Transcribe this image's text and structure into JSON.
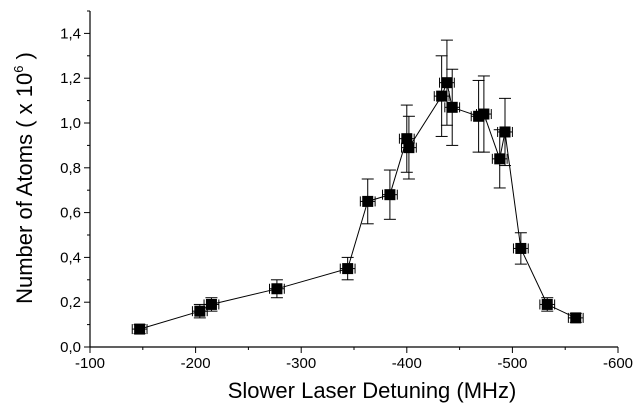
{
  "chart_data": {
    "type": "scatter",
    "title": "",
    "xlabel": "Slower Laser Detuning (MHz)",
    "ylabel": "Number of Atoms ( x 10",
    "ylabel_exponent": "6",
    "ylabel_close": " )",
    "xlim": [
      -100,
      -600
    ],
    "ylim": [
      0.0,
      1.5
    ],
    "x_ticks": [
      -100,
      -200,
      -300,
      -400,
      -500,
      -600
    ],
    "y_ticks": [
      0.0,
      0.2,
      0.4,
      0.6,
      0.8,
      1.0,
      1.2,
      1.4
    ],
    "x_tick_labels": [
      "-100",
      "-200",
      "-300",
      "-400",
      "-500",
      "-600"
    ],
    "y_tick_labels": [
      "0,0",
      "0,2",
      "0,4",
      "0,6",
      "0,8",
      "1,0",
      "1,2",
      "1,4"
    ],
    "grid": false,
    "legend": "none",
    "marker": "square",
    "connected": true,
    "colors": {
      "marker": "#000000",
      "line": "#000000",
      "axis": "#000000"
    },
    "series": [
      {
        "points": [
          {
            "x": -147,
            "y": 0.08,
            "xerr": 7,
            "yerr": 0.02
          },
          {
            "x": -204,
            "y": 0.16,
            "xerr": 7,
            "yerr": 0.03
          },
          {
            "x": -215,
            "y": 0.19,
            "xerr": 7,
            "yerr": 0.03
          },
          {
            "x": -277,
            "y": 0.26,
            "xerr": 7,
            "yerr": 0.04
          },
          {
            "x": -344,
            "y": 0.35,
            "xerr": 7,
            "yerr": 0.05
          },
          {
            "x": -363,
            "y": 0.65,
            "xerr": 7,
            "yerr": 0.1
          },
          {
            "x": -384,
            "y": 0.68,
            "xerr": 7,
            "yerr": 0.11
          },
          {
            "x": -400,
            "y": 0.93,
            "xerr": 7,
            "yerr": 0.15
          },
          {
            "x": -402,
            "y": 0.89,
            "xerr": 7,
            "yerr": 0.14
          },
          {
            "x": -433,
            "y": 1.12,
            "xerr": 7,
            "yerr": 0.18
          },
          {
            "x": -438,
            "y": 1.18,
            "xerr": 7,
            "yerr": 0.19
          },
          {
            "x": -443,
            "y": 1.07,
            "xerr": 7,
            "yerr": 0.17
          },
          {
            "x": -468,
            "y": 1.03,
            "xerr": 7,
            "yerr": 0.16
          },
          {
            "x": -473,
            "y": 1.04,
            "xerr": 7,
            "yerr": 0.17
          },
          {
            "x": -488,
            "y": 0.84,
            "xerr": 7,
            "yerr": 0.13
          },
          {
            "x": -493,
            "y": 0.96,
            "xerr": 7,
            "yerr": 0.15
          },
          {
            "x": -508,
            "y": 0.44,
            "xerr": 7,
            "yerr": 0.07
          },
          {
            "x": -533,
            "y": 0.19,
            "xerr": 7,
            "yerr": 0.03
          },
          {
            "x": -560,
            "y": 0.13,
            "xerr": 7,
            "yerr": 0.02
          }
        ]
      }
    ]
  }
}
